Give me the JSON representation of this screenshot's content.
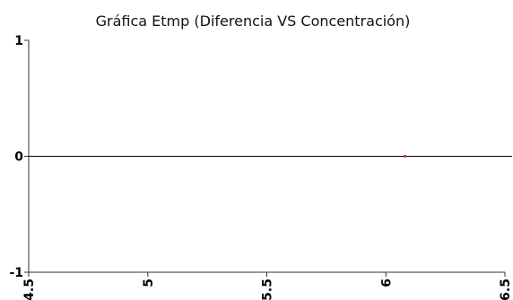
{
  "chart_data": {
    "type": "scatter",
    "title": "Gráfica Etmp (Diferencia VS Concentración)",
    "xlabel": "",
    "ylabel": "",
    "xlim": [
      4.5,
      6.5
    ],
    "ylim": [
      -1,
      1
    ],
    "x_ticks": [
      4.5,
      5,
      5.5,
      6,
      6.5
    ],
    "x_tick_labels": [
      "4.5",
      "5",
      "5.5",
      "6",
      "6.5"
    ],
    "y_ticks": [
      -1,
      0,
      1
    ],
    "y_tick_labels": [
      "-1",
      "0",
      "1"
    ],
    "grid": false,
    "legend": "none",
    "series": [
      {
        "points": [
          {
            "x": 6.08,
            "y": 0
          }
        ],
        "color": "#c0392b"
      }
    ],
    "reference_line": {
      "y": 0,
      "color": "#000000"
    }
  }
}
